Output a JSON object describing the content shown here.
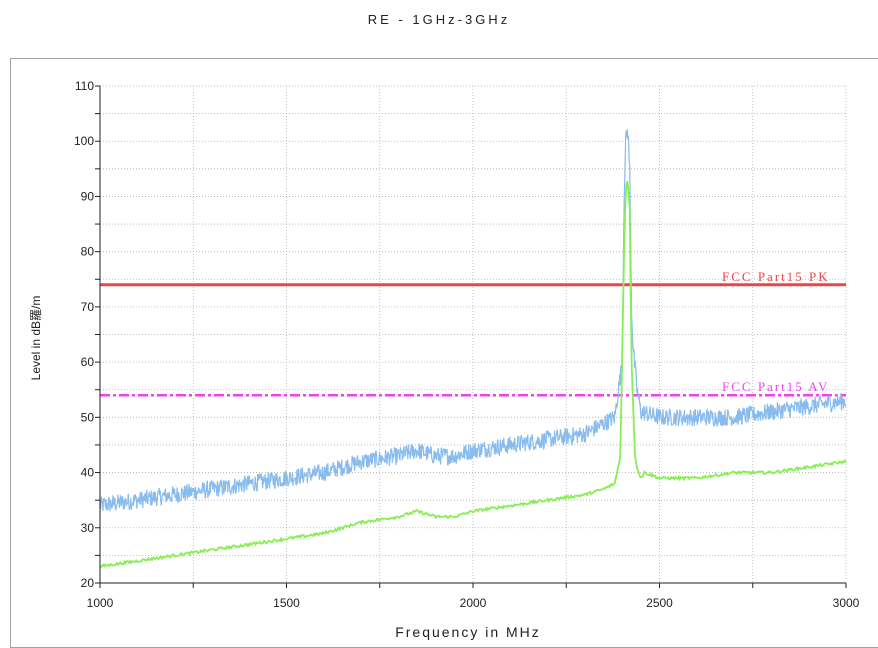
{
  "chart_data": {
    "type": "line",
    "title": "RE - 1GHz-3GHz",
    "xlabel": "Frequency in MHz",
    "ylabel": "Level in dB羅/m",
    "xlim": [
      1000,
      3000
    ],
    "ylim": [
      20,
      110
    ],
    "xticks": [
      1000,
      1500,
      2000,
      2500,
      3000
    ],
    "yticks": [
      20,
      30,
      40,
      50,
      60,
      70,
      80,
      90,
      100,
      110
    ],
    "grid": true,
    "limit_lines": [
      {
        "name": "FCC Part15 PK",
        "y": 74,
        "color": "#ee4444",
        "style": "solid"
      },
      {
        "name": "FCC Part15 AV",
        "y": 54,
        "color": "#ee44ee",
        "style": "dash-dot"
      }
    ],
    "series": [
      {
        "color": "#88bbee",
        "style": "noisy",
        "x": [
          1000,
          1100,
          1200,
          1300,
          1400,
          1500,
          1600,
          1700,
          1800,
          1850,
          1900,
          1950,
          2000,
          2100,
          2200,
          2300,
          2380,
          2400,
          2405,
          2410,
          2415,
          2420,
          2425,
          2430,
          2440,
          2450,
          2500,
          2600,
          2700,
          2800,
          2900,
          3000
        ],
        "values": [
          34,
          35,
          36,
          37,
          38,
          39,
          40,
          42,
          43,
          44,
          43,
          43,
          44,
          45,
          46,
          47,
          50,
          60,
          90,
          101,
          102,
          95,
          70,
          62,
          55,
          51,
          50,
          50,
          50,
          51,
          52,
          53
        ]
      },
      {
        "color": "#88ee55",
        "style": "smooth",
        "x": [
          1000,
          1100,
          1200,
          1300,
          1400,
          1500,
          1600,
          1700,
          1800,
          1850,
          1900,
          1950,
          2000,
          2100,
          2200,
          2300,
          2350,
          2380,
          2395,
          2405,
          2410,
          2415,
          2420,
          2425,
          2435,
          2450,
          2460,
          2500,
          2600,
          2700,
          2800,
          2900,
          3000
        ],
        "values": [
          23,
          24,
          25,
          26,
          27,
          28,
          29,
          31,
          32,
          33,
          32,
          32,
          33,
          34,
          35,
          36,
          37,
          38,
          43,
          80,
          92,
          93,
          88,
          60,
          42,
          39,
          40,
          39,
          39,
          40,
          40,
          41,
          42
        ]
      }
    ]
  }
}
